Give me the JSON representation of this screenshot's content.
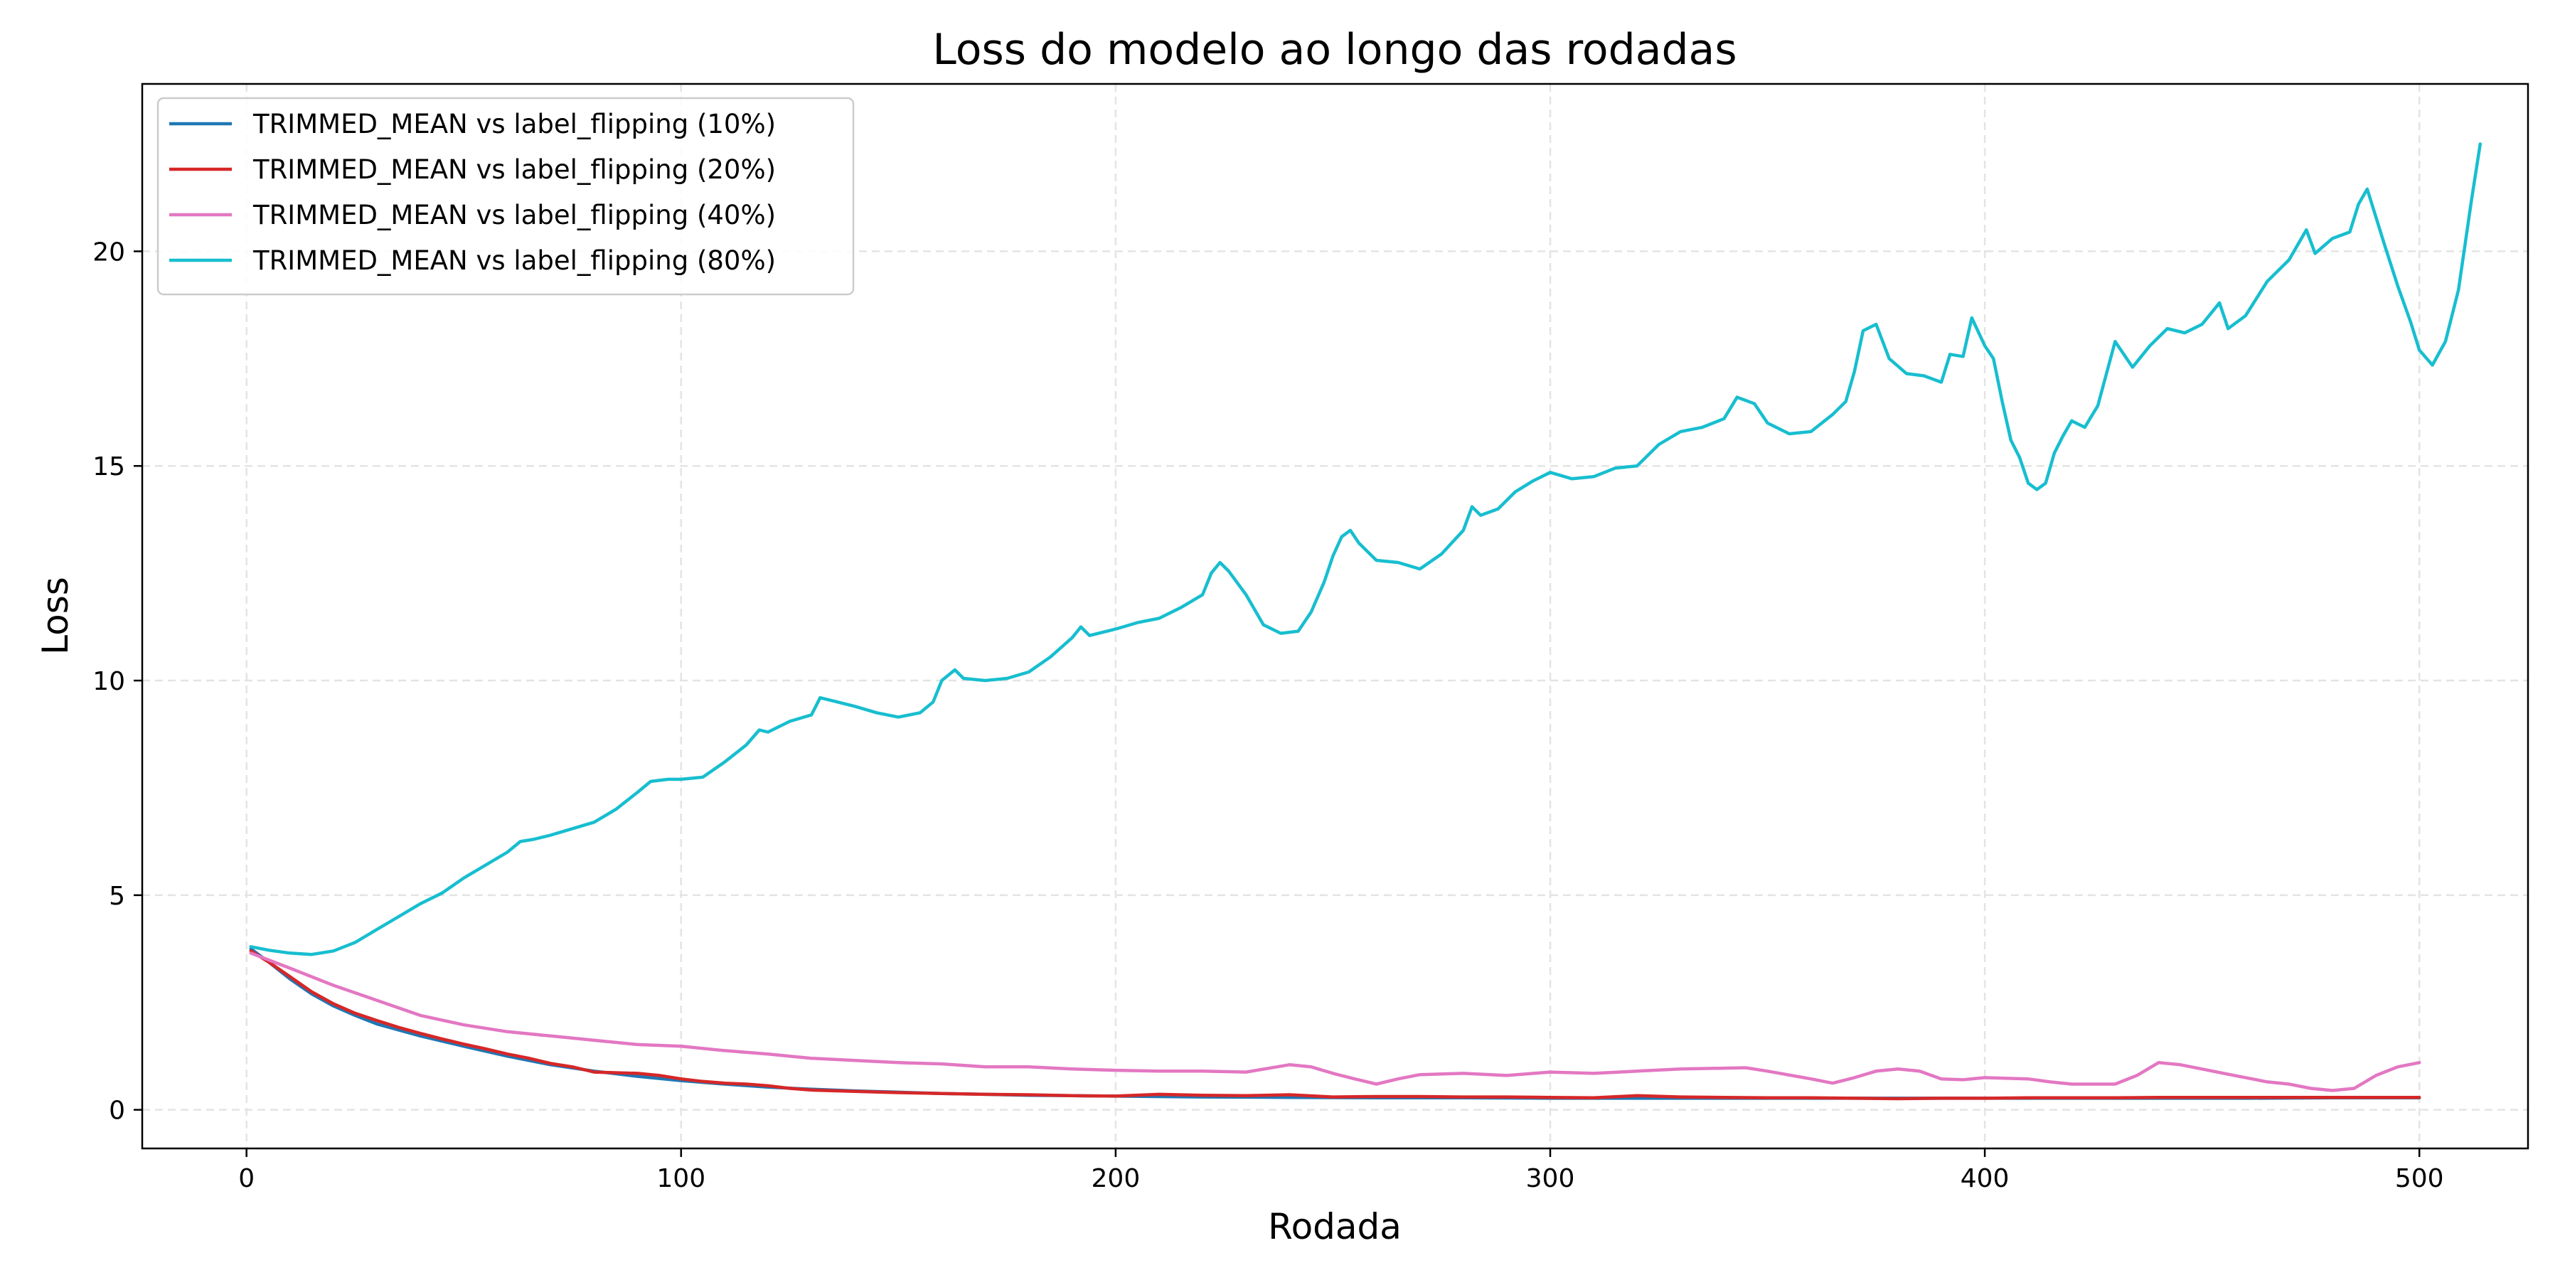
{
  "chart_data": {
    "type": "line",
    "title": "Loss do modelo ao longo das rodadas",
    "xlabel": "Rodada",
    "ylabel": "Loss",
    "xlim": [
      -24,
      525
    ],
    "ylim": [
      -0.9,
      23.9
    ],
    "xticks": [
      0,
      100,
      200,
      300,
      400,
      500
    ],
    "yticks": [
      0,
      5,
      10,
      15,
      20
    ],
    "grid": true,
    "legend_position": "top-left",
    "series": [
      {
        "name": "TRIMMED_MEAN vs label_flipping (10%)",
        "color": "#1f77b4",
        "points": [
          [
            1,
            3.75
          ],
          [
            5,
            3.45
          ],
          [
            10,
            3.05
          ],
          [
            15,
            2.7
          ],
          [
            20,
            2.42
          ],
          [
            25,
            2.2
          ],
          [
            30,
            2.0
          ],
          [
            40,
            1.72
          ],
          [
            50,
            1.48
          ],
          [
            60,
            1.25
          ],
          [
            70,
            1.05
          ],
          [
            80,
            0.9
          ],
          [
            90,
            0.78
          ],
          [
            100,
            0.68
          ],
          [
            110,
            0.6
          ],
          [
            120,
            0.53
          ],
          [
            130,
            0.48
          ],
          [
            140,
            0.44
          ],
          [
            150,
            0.41
          ],
          [
            160,
            0.38
          ],
          [
            170,
            0.36
          ],
          [
            180,
            0.34
          ],
          [
            190,
            0.33
          ],
          [
            200,
            0.32
          ],
          [
            220,
            0.3
          ],
          [
            240,
            0.29
          ],
          [
            260,
            0.28
          ],
          [
            280,
            0.28
          ],
          [
            300,
            0.27
          ],
          [
            320,
            0.27
          ],
          [
            340,
            0.27
          ],
          [
            360,
            0.27
          ],
          [
            380,
            0.27
          ],
          [
            400,
            0.27
          ],
          [
            420,
            0.27
          ],
          [
            440,
            0.27
          ],
          [
            460,
            0.27
          ],
          [
            480,
            0.28
          ],
          [
            500,
            0.28
          ]
        ]
      },
      {
        "name": "TRIMMED_MEAN vs label_flipping (20%)",
        "color": "#d62728",
        "points": [
          [
            1,
            3.7
          ],
          [
            5,
            3.45
          ],
          [
            10,
            3.1
          ],
          [
            15,
            2.75
          ],
          [
            20,
            2.47
          ],
          [
            25,
            2.25
          ],
          [
            30,
            2.08
          ],
          [
            35,
            1.92
          ],
          [
            40,
            1.78
          ],
          [
            45,
            1.65
          ],
          [
            50,
            1.53
          ],
          [
            55,
            1.42
          ],
          [
            60,
            1.3
          ],
          [
            65,
            1.2
          ],
          [
            70,
            1.08
          ],
          [
            75,
            1.0
          ],
          [
            80,
            0.88
          ],
          [
            90,
            0.85
          ],
          [
            95,
            0.8
          ],
          [
            100,
            0.72
          ],
          [
            105,
            0.66
          ],
          [
            110,
            0.62
          ],
          [
            115,
            0.6
          ],
          [
            120,
            0.56
          ],
          [
            125,
            0.5
          ],
          [
            130,
            0.46
          ],
          [
            140,
            0.43
          ],
          [
            150,
            0.4
          ],
          [
            160,
            0.38
          ],
          [
            170,
            0.36
          ],
          [
            180,
            0.35
          ],
          [
            190,
            0.33
          ],
          [
            200,
            0.32
          ],
          [
            210,
            0.36
          ],
          [
            220,
            0.34
          ],
          [
            230,
            0.33
          ],
          [
            240,
            0.35
          ],
          [
            250,
            0.3
          ],
          [
            260,
            0.31
          ],
          [
            270,
            0.31
          ],
          [
            280,
            0.3
          ],
          [
            290,
            0.3
          ],
          [
            300,
            0.29
          ],
          [
            310,
            0.28
          ],
          [
            320,
            0.33
          ],
          [
            330,
            0.3
          ],
          [
            340,
            0.29
          ],
          [
            350,
            0.28
          ],
          [
            360,
            0.28
          ],
          [
            370,
            0.27
          ],
          [
            380,
            0.26
          ],
          [
            390,
            0.27
          ],
          [
            400,
            0.27
          ],
          [
            410,
            0.28
          ],
          [
            420,
            0.28
          ],
          [
            430,
            0.28
          ],
          [
            440,
            0.29
          ],
          [
            450,
            0.29
          ],
          [
            460,
            0.29
          ],
          [
            470,
            0.29
          ],
          [
            480,
            0.29
          ],
          [
            490,
            0.29
          ],
          [
            500,
            0.29
          ]
        ]
      },
      {
        "name": "TRIMMED_MEAN vs label_flipping (40%)",
        "color": "#e377c2",
        "points": [
          [
            1,
            3.65
          ],
          [
            10,
            3.3
          ],
          [
            20,
            2.9
          ],
          [
            30,
            2.55
          ],
          [
            40,
            2.2
          ],
          [
            50,
            1.98
          ],
          [
            60,
            1.82
          ],
          [
            70,
            1.72
          ],
          [
            80,
            1.62
          ],
          [
            90,
            1.52
          ],
          [
            100,
            1.48
          ],
          [
            110,
            1.38
          ],
          [
            120,
            1.3
          ],
          [
            130,
            1.2
          ],
          [
            140,
            1.15
          ],
          [
            150,
            1.1
          ],
          [
            160,
            1.07
          ],
          [
            170,
            1.0
          ],
          [
            180,
            1.0
          ],
          [
            190,
            0.95
          ],
          [
            200,
            0.92
          ],
          [
            210,
            0.9
          ],
          [
            220,
            0.9
          ],
          [
            230,
            0.88
          ],
          [
            240,
            1.05
          ],
          [
            245,
            1.0
          ],
          [
            250,
            0.85
          ],
          [
            255,
            0.72
          ],
          [
            260,
            0.6
          ],
          [
            265,
            0.72
          ],
          [
            270,
            0.82
          ],
          [
            280,
            0.85
          ],
          [
            290,
            0.8
          ],
          [
            300,
            0.88
          ],
          [
            310,
            0.85
          ],
          [
            320,
            0.9
          ],
          [
            330,
            0.95
          ],
          [
            340,
            0.97
          ],
          [
            345,
            0.98
          ],
          [
            350,
            0.9
          ],
          [
            360,
            0.72
          ],
          [
            365,
            0.62
          ],
          [
            370,
            0.75
          ],
          [
            375,
            0.9
          ],
          [
            380,
            0.95
          ],
          [
            385,
            0.9
          ],
          [
            390,
            0.72
          ],
          [
            395,
            0.7
          ],
          [
            400,
            0.75
          ],
          [
            410,
            0.72
          ],
          [
            415,
            0.65
          ],
          [
            420,
            0.6
          ],
          [
            430,
            0.6
          ],
          [
            435,
            0.8
          ],
          [
            440,
            1.1
          ],
          [
            445,
            1.05
          ],
          [
            450,
            0.95
          ],
          [
            455,
            0.85
          ],
          [
            460,
            0.75
          ],
          [
            465,
            0.65
          ],
          [
            470,
            0.6
          ],
          [
            475,
            0.5
          ],
          [
            480,
            0.45
          ],
          [
            485,
            0.5
          ],
          [
            490,
            0.8
          ],
          [
            495,
            1.0
          ],
          [
            500,
            1.1
          ]
        ]
      },
      {
        "name": "TRIMMED_MEAN vs label_flipping (80%)",
        "color": "#17becf",
        "points": [
          [
            1,
            3.8
          ],
          [
            5,
            3.72
          ],
          [
            10,
            3.65
          ],
          [
            15,
            3.62
          ],
          [
            20,
            3.7
          ],
          [
            25,
            3.9
          ],
          [
            30,
            4.2
          ],
          [
            35,
            4.5
          ],
          [
            40,
            4.8
          ],
          [
            45,
            5.05
          ],
          [
            50,
            5.4
          ],
          [
            55,
            5.7
          ],
          [
            60,
            6.0
          ],
          [
            63,
            6.25
          ],
          [
            66,
            6.3
          ],
          [
            70,
            6.4
          ],
          [
            75,
            6.55
          ],
          [
            80,
            6.7
          ],
          [
            85,
            7.0
          ],
          [
            90,
            7.4
          ],
          [
            93,
            7.65
          ],
          [
            97,
            7.7
          ],
          [
            100,
            7.7
          ],
          [
            105,
            7.75
          ],
          [
            110,
            8.1
          ],
          [
            115,
            8.5
          ],
          [
            118,
            8.85
          ],
          [
            120,
            8.8
          ],
          [
            125,
            9.05
          ],
          [
            130,
            9.2
          ],
          [
            132,
            9.6
          ],
          [
            136,
            9.5
          ],
          [
            140,
            9.4
          ],
          [
            145,
            9.25
          ],
          [
            150,
            9.15
          ],
          [
            155,
            9.25
          ],
          [
            158,
            9.5
          ],
          [
            160,
            10.0
          ],
          [
            163,
            10.25
          ],
          [
            165,
            10.05
          ],
          [
            170,
            10.0
          ],
          [
            175,
            10.05
          ],
          [
            180,
            10.2
          ],
          [
            185,
            10.55
          ],
          [
            190,
            11.0
          ],
          [
            192,
            11.25
          ],
          [
            194,
            11.05
          ],
          [
            200,
            11.2
          ],
          [
            205,
            11.35
          ],
          [
            210,
            11.45
          ],
          [
            215,
            11.7
          ],
          [
            220,
            12.0
          ],
          [
            222,
            12.5
          ],
          [
            224,
            12.75
          ],
          [
            226,
            12.55
          ],
          [
            230,
            12.0
          ],
          [
            234,
            11.3
          ],
          [
            238,
            11.1
          ],
          [
            242,
            11.15
          ],
          [
            245,
            11.6
          ],
          [
            248,
            12.3
          ],
          [
            250,
            12.9
          ],
          [
            252,
            13.35
          ],
          [
            254,
            13.5
          ],
          [
            256,
            13.2
          ],
          [
            260,
            12.8
          ],
          [
            265,
            12.75
          ],
          [
            270,
            12.6
          ],
          [
            275,
            12.95
          ],
          [
            280,
            13.5
          ],
          [
            282,
            14.05
          ],
          [
            284,
            13.85
          ],
          [
            288,
            14.0
          ],
          [
            292,
            14.4
          ],
          [
            296,
            14.65
          ],
          [
            300,
            14.85
          ],
          [
            305,
            14.7
          ],
          [
            310,
            14.75
          ],
          [
            315,
            14.95
          ],
          [
            320,
            15.0
          ],
          [
            325,
            15.5
          ],
          [
            330,
            15.8
          ],
          [
            335,
            15.9
          ],
          [
            340,
            16.1
          ],
          [
            343,
            16.6
          ],
          [
            347,
            16.45
          ],
          [
            350,
            16.0
          ],
          [
            355,
            15.75
          ],
          [
            360,
            15.8
          ],
          [
            365,
            16.2
          ],
          [
            368,
            16.5
          ],
          [
            370,
            17.2
          ],
          [
            372,
            18.15
          ],
          [
            375,
            18.3
          ],
          [
            378,
            17.5
          ],
          [
            382,
            17.15
          ],
          [
            386,
            17.1
          ],
          [
            390,
            16.95
          ],
          [
            392,
            17.6
          ],
          [
            395,
            17.55
          ],
          [
            397,
            18.45
          ],
          [
            400,
            17.8
          ],
          [
            402,
            17.5
          ],
          [
            404,
            16.5
          ],
          [
            406,
            15.6
          ],
          [
            408,
            15.2
          ],
          [
            410,
            14.6
          ],
          [
            412,
            14.45
          ],
          [
            414,
            14.6
          ],
          [
            416,
            15.3
          ],
          [
            418,
            15.7
          ],
          [
            420,
            16.05
          ],
          [
            423,
            15.9
          ],
          [
            426,
            16.4
          ],
          [
            430,
            17.9
          ],
          [
            434,
            17.3
          ],
          [
            438,
            17.8
          ],
          [
            442,
            18.2
          ],
          [
            446,
            18.1
          ],
          [
            450,
            18.3
          ],
          [
            454,
            18.8
          ],
          [
            456,
            18.2
          ],
          [
            460,
            18.5
          ],
          [
            465,
            19.3
          ],
          [
            470,
            19.8
          ],
          [
            474,
            20.5
          ],
          [
            476,
            19.95
          ],
          [
            480,
            20.3
          ],
          [
            484,
            20.45
          ],
          [
            486,
            21.1
          ],
          [
            488,
            21.45
          ],
          [
            490,
            20.8
          ],
          [
            492,
            20.15
          ],
          [
            495,
            19.2
          ],
          [
            498,
            18.35
          ],
          [
            500,
            17.7
          ],
          [
            503,
            17.35
          ],
          [
            506,
            17.9
          ],
          [
            509,
            19.1
          ],
          [
            512,
            21.2
          ],
          [
            514,
            22.5
          ]
        ]
      }
    ]
  }
}
